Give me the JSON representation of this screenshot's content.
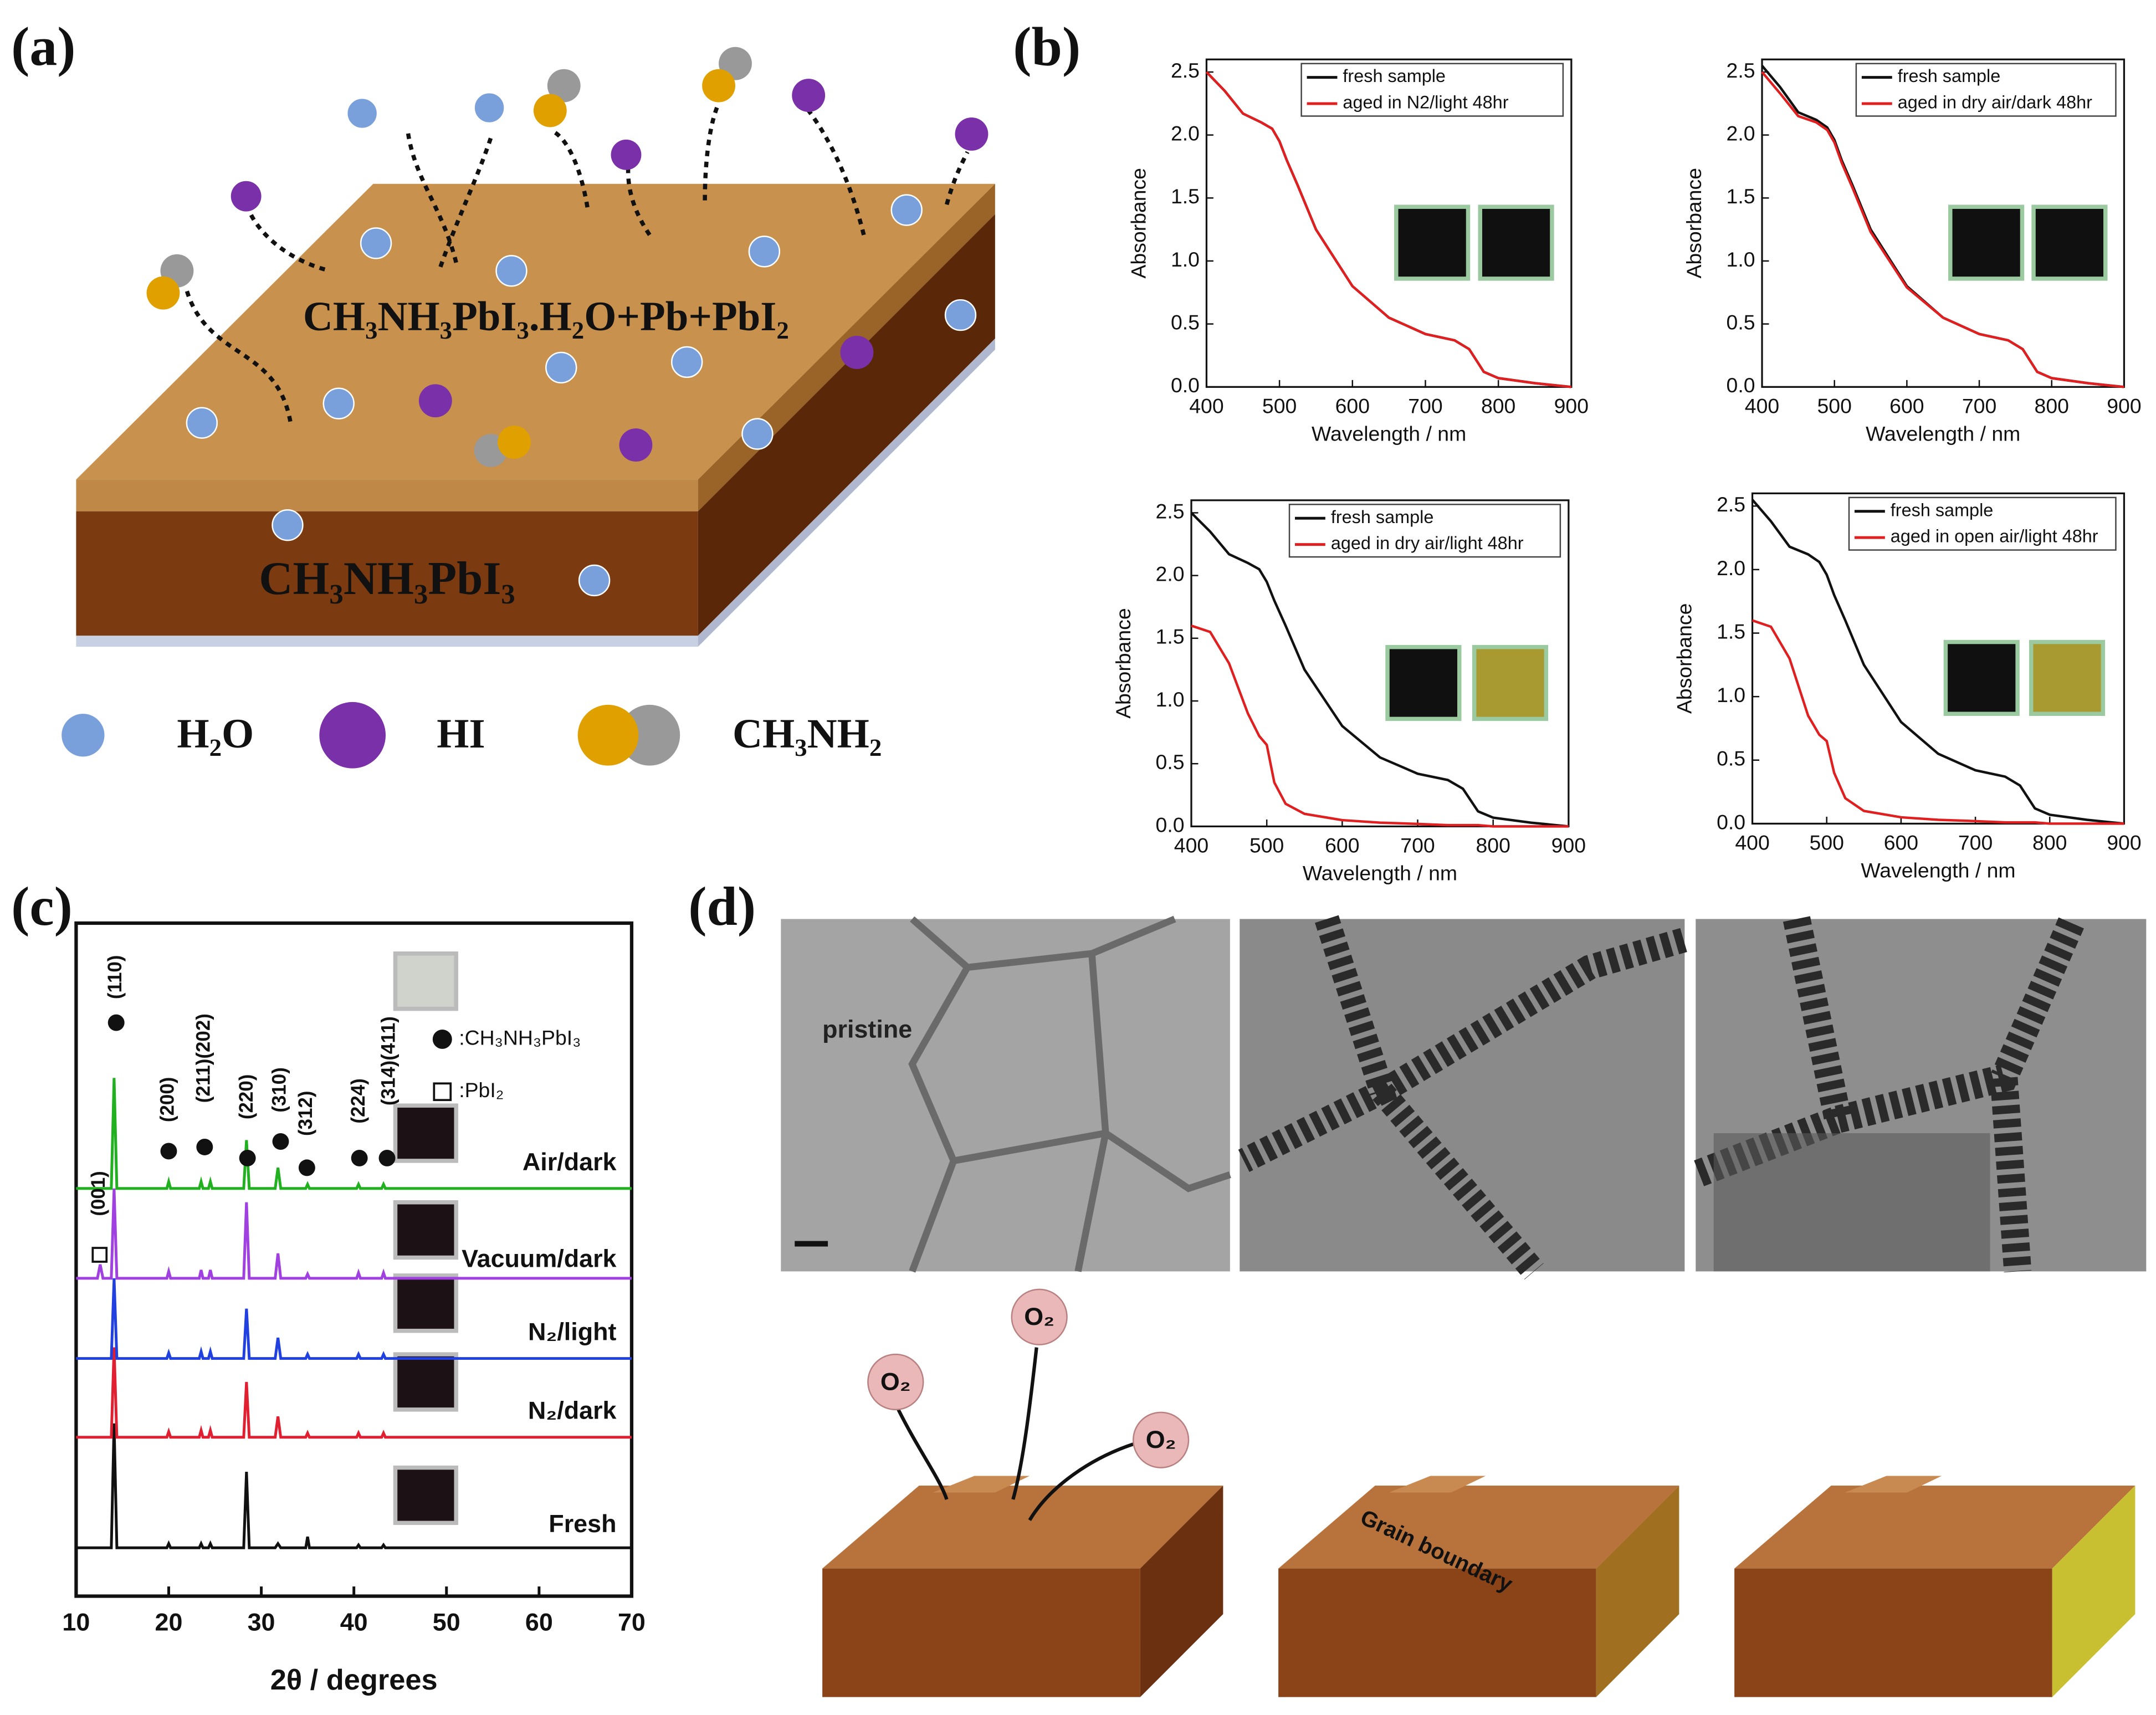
{
  "figure": {
    "a": {
      "label": "(a)",
      "top_layer": "CH₃NH₃PbI₃.H₂O+Pb+PbI₂",
      "bottom_layer": "CH₃NH₃PbI₃",
      "legend": [
        "H₂O",
        "HI",
        "CH₃NH₂"
      ]
    },
    "b": {
      "label": "(b)"
    },
    "c": {
      "label": "(c)",
      "peak_labels": [
        "(110)",
        "(200)",
        "(211)(202)",
        "(220)",
        "(310)",
        "(312)",
        "(224)",
        "(314)(411)",
        "(001)"
      ],
      "phase_legend": [
        ":CH₃NH₃PbI₃",
        ":PbI₂"
      ]
    },
    "d": {
      "label": "(d)",
      "sem_label": "pristine",
      "annotation": "Grain boundary",
      "oxygen": "O₂"
    }
  },
  "chart_data": [
    {
      "type": "line",
      "x_label": "Wavelength / nm",
      "y_label": "Absorbance",
      "x": [
        400,
        425,
        450,
        475,
        490,
        500,
        510,
        525,
        550,
        600,
        650,
        700,
        740,
        760,
        780,
        800,
        850,
        900
      ],
      "series": [
        {
          "name": "fresh sample",
          "color": "#111111",
          "values": [
            2.5,
            2.35,
            2.17,
            2.1,
            2.05,
            1.95,
            1.8,
            1.6,
            1.25,
            0.8,
            0.55,
            0.42,
            0.37,
            0.3,
            0.12,
            0.07,
            0.03,
            0.0
          ]
        },
        {
          "name": "aged in N2/light 48hr",
          "color": "#e02020",
          "values": [
            2.5,
            2.35,
            2.17,
            2.1,
            2.05,
            1.95,
            1.8,
            1.6,
            1.25,
            0.8,
            0.55,
            0.42,
            0.37,
            0.3,
            0.12,
            0.07,
            0.03,
            0.0
          ]
        }
      ],
      "xlim": [
        400,
        900
      ],
      "xticks": [
        400,
        500,
        600,
        700,
        800,
        900
      ],
      "ylim": [
        0,
        2.6
      ],
      "yticks": [
        {
          "value": 0,
          "label": "0.0"
        },
        {
          "value": 0.5,
          "label": "0.5"
        },
        {
          "value": 1,
          "label": "1.0"
        },
        {
          "value": 1.5,
          "label": "1.5"
        },
        {
          "value": 2,
          "label": "2.0"
        },
        {
          "value": 2.5,
          "label": "2.5"
        }
      ],
      "legend": "upper right"
    },
    {
      "type": "line",
      "x_label": "Wavelength / nm",
      "y_label": "Absorbance",
      "x": [
        400,
        425,
        450,
        475,
        490,
        500,
        510,
        525,
        550,
        600,
        650,
        700,
        740,
        760,
        780,
        800,
        850,
        900
      ],
      "series": [
        {
          "name": "fresh sample",
          "color": "#111111",
          "values": [
            2.55,
            2.38,
            2.18,
            2.12,
            2.06,
            1.96,
            1.8,
            1.6,
            1.25,
            0.8,
            0.55,
            0.42,
            0.37,
            0.3,
            0.12,
            0.07,
            0.03,
            0.0
          ]
        },
        {
          "name": "aged in dry air/dark 48hr",
          "color": "#e02020",
          "values": [
            2.5,
            2.33,
            2.15,
            2.1,
            2.04,
            1.94,
            1.78,
            1.58,
            1.23,
            0.79,
            0.55,
            0.42,
            0.37,
            0.3,
            0.12,
            0.07,
            0.03,
            0.0
          ]
        }
      ],
      "xlim": [
        400,
        900
      ],
      "xticks": [
        400,
        500,
        600,
        700,
        800,
        900
      ],
      "ylim": [
        0,
        2.6
      ],
      "yticks": [
        {
          "value": 0,
          "label": "0.0"
        },
        {
          "value": 0.5,
          "label": "0.5"
        },
        {
          "value": 1,
          "label": "1.0"
        },
        {
          "value": 1.5,
          "label": "1.5"
        },
        {
          "value": 2,
          "label": "2.0"
        },
        {
          "value": 2.5,
          "label": "2.5"
        }
      ],
      "legend": "upper right"
    },
    {
      "type": "line",
      "x_label": "Wavelength / nm",
      "y_label": "Absorbance",
      "x": [
        400,
        425,
        450,
        475,
        490,
        500,
        510,
        525,
        550,
        600,
        650,
        700,
        740,
        760,
        780,
        800,
        850,
        900
      ],
      "series": [
        {
          "name": "fresh sample",
          "color": "#111111",
          "values": [
            2.5,
            2.35,
            2.17,
            2.1,
            2.05,
            1.95,
            1.8,
            1.6,
            1.25,
            0.8,
            0.55,
            0.42,
            0.37,
            0.3,
            0.12,
            0.07,
            0.03,
            0.0
          ]
        },
        {
          "name": "aged in dry air/light 48hr",
          "color": "#e02020",
          "values": [
            1.6,
            1.55,
            1.3,
            0.9,
            0.72,
            0.65,
            0.35,
            0.18,
            0.1,
            0.05,
            0.03,
            0.02,
            0.01,
            0.01,
            0.01,
            0.0,
            0.0,
            0.0
          ]
        }
      ],
      "xlim": [
        400,
        900
      ],
      "xticks": [
        400,
        500,
        600,
        700,
        800,
        900
      ],
      "ylim": [
        0,
        2.6
      ],
      "yticks": [
        {
          "value": 0,
          "label": "0.0"
        },
        {
          "value": 0.5,
          "label": "0.5"
        },
        {
          "value": 1,
          "label": "1.0"
        },
        {
          "value": 1.5,
          "label": "1.5"
        },
        {
          "value": 2,
          "label": "2.0"
        },
        {
          "value": 2.5,
          "label": "2.5"
        }
      ],
      "legend": "upper right"
    },
    {
      "type": "line",
      "x_label": "Wavelength / nm",
      "y_label": "Absorbance",
      "x": [
        400,
        425,
        450,
        475,
        490,
        500,
        510,
        525,
        550,
        600,
        650,
        700,
        740,
        760,
        780,
        800,
        850,
        900
      ],
      "series": [
        {
          "name": "fresh sample",
          "color": "#111111",
          "values": [
            2.55,
            2.38,
            2.18,
            2.12,
            2.06,
            1.96,
            1.8,
            1.6,
            1.25,
            0.8,
            0.55,
            0.42,
            0.37,
            0.3,
            0.12,
            0.07,
            0.03,
            0.0
          ]
        },
        {
          "name": "aged in open air/light 48hr",
          "color": "#e02020",
          "values": [
            1.6,
            1.55,
            1.3,
            0.85,
            0.7,
            0.65,
            0.4,
            0.2,
            0.1,
            0.05,
            0.03,
            0.02,
            0.01,
            0.01,
            0.01,
            0.0,
            0.0,
            0.0
          ]
        }
      ],
      "xlim": [
        400,
        900
      ],
      "xticks": [
        400,
        500,
        600,
        700,
        800,
        900
      ],
      "ylim": [
        0,
        2.6
      ],
      "yticks": [
        {
          "value": 0,
          "label": "0.0"
        },
        {
          "value": 0.5,
          "label": "0.5"
        },
        {
          "value": 1,
          "label": "1.0"
        },
        {
          "value": 1.5,
          "label": "1.5"
        },
        {
          "value": 2,
          "label": "2.0"
        },
        {
          "value": 2.5,
          "label": "2.5"
        }
      ],
      "legend": "upper right"
    },
    {
      "type": "spectrum",
      "x_label": "2θ / degrees",
      "x": [
        10,
        12.3,
        12.6,
        12.9,
        13.8,
        14.1,
        14.4,
        19.8,
        20,
        20.2,
        23.3,
        23.5,
        23.7,
        24.3,
        24.5,
        24.7,
        28.1,
        28.4,
        28.7,
        31.5,
        31.8,
        32.1,
        34.8,
        35,
        35.2,
        40.3,
        40.5,
        40.7,
        43,
        43.2,
        43.4,
        70
      ],
      "series": [
        {
          "name": "Fresh",
          "color": "#111111",
          "values": [
            0,
            0,
            0,
            0,
            0,
            90,
            0,
            0,
            3,
            0,
            0,
            3,
            0,
            0,
            3,
            0,
            0,
            55,
            0,
            0,
            3,
            0,
            0,
            8,
            0,
            0,
            2,
            0,
            0,
            2,
            0,
            0
          ]
        },
        {
          "name": "N₂/dark",
          "color": "#e02030",
          "values": [
            0,
            0,
            0,
            0,
            0,
            65,
            0,
            0,
            4,
            0,
            0,
            5,
            0,
            0,
            5,
            0,
            0,
            40,
            0,
            0,
            15,
            0,
            0,
            3,
            0,
            0,
            3,
            0,
            0,
            3,
            0,
            0
          ]
        },
        {
          "name": "N₂/light",
          "color": "#2040e0",
          "values": [
            0,
            0,
            0,
            0,
            0,
            58,
            0,
            0,
            4,
            0,
            0,
            5,
            0,
            0,
            5,
            0,
            0,
            36,
            0,
            0,
            15,
            0,
            0,
            3,
            0,
            0,
            3,
            0,
            0,
            3,
            0,
            0
          ]
        },
        {
          "name": "Vacuum/dark",
          "color": "#a040e0",
          "values": [
            0,
            0,
            10,
            0,
            0,
            65,
            0,
            0,
            5,
            0,
            0,
            6,
            0,
            0,
            6,
            0,
            0,
            55,
            0,
            0,
            18,
            0,
            0,
            3,
            0,
            0,
            4,
            0,
            0,
            4,
            0,
            0
          ]
        },
        {
          "name": "Air/dark",
          "color": "#20b020",
          "values": [
            0,
            0,
            0,
            0,
            0,
            80,
            0,
            0,
            5,
            0,
            0,
            5,
            0,
            0,
            5,
            0,
            0,
            35,
            0,
            0,
            15,
            0,
            0,
            3,
            0,
            0,
            3,
            0,
            0,
            3,
            0,
            0
          ]
        }
      ],
      "xlim": [
        10,
        70
      ],
      "xticks": [
        10,
        20,
        30,
        40,
        50,
        60,
        70
      ]
    }
  ]
}
